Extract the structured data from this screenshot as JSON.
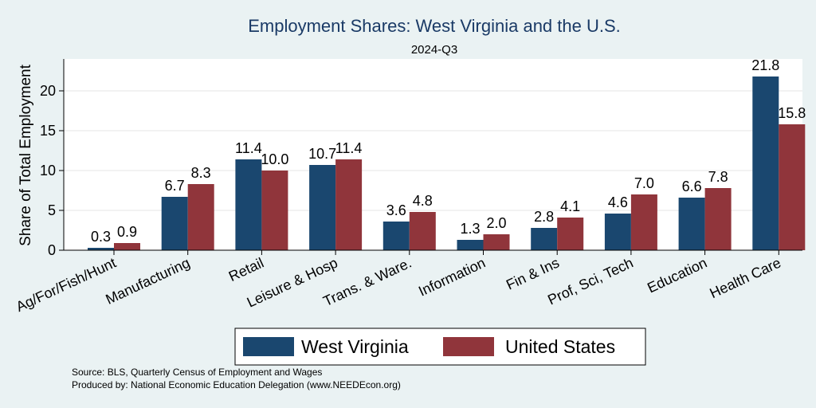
{
  "chart_data": {
    "type": "bar",
    "title": "Employment Shares: West Virginia and the U.S.",
    "subtitle": "2024-Q3",
    "ylabel": "Share of Total Employment",
    "xlabel": "",
    "ylim": [
      0,
      24
    ],
    "yticks": [
      0,
      5,
      10,
      15,
      20
    ],
    "categories": [
      "Ag/For/Fish/Hunt",
      "Manufacturing",
      "Retail",
      "Leisure & Hosp",
      "Trans. & Ware.",
      "Information",
      "Fin & Ins",
      "Prof, Sci, Tech",
      "Education",
      "Health Care"
    ],
    "series": [
      {
        "name": "West Virginia",
        "color": "#1a476f",
        "values": [
          0.3,
          6.7,
          11.4,
          10.7,
          3.6,
          1.3,
          2.8,
          4.6,
          6.6,
          21.8
        ],
        "labels": [
          "0.3",
          "6.7",
          "11.4",
          "10.7",
          "3.6",
          "1.3",
          "2.8",
          "4.6",
          "6.6",
          "21.8"
        ]
      },
      {
        "name": "United States",
        "color": "#90353b",
        "values": [
          0.9,
          8.3,
          10.0,
          11.4,
          4.8,
          2.0,
          4.1,
          7.0,
          7.8,
          15.8
        ],
        "labels": [
          "0.9",
          "8.3",
          "10.0",
          "11.4",
          "4.8",
          "2.0",
          "4.1",
          "7.0",
          "7.8",
          "15.8"
        ]
      }
    ],
    "grid": true,
    "legend_position": "bottom"
  },
  "notes": {
    "source": "Source: BLS, Quarterly Census of Employment and Wages",
    "produced": "Produced by: National Economic Education Delegation (www.NEEDEcon.org)"
  }
}
